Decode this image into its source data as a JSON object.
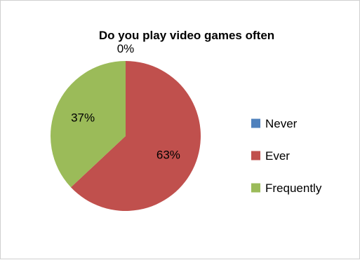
{
  "chart_data": {
    "type": "pie",
    "title": "Do you play video games often",
    "categories": [
      "Never",
      "Ever",
      "Frequently"
    ],
    "values": [
      0,
      63,
      37
    ],
    "data_labels": [
      "0%",
      "63%",
      "37%"
    ],
    "colors": [
      "#4F81BD",
      "#C0504D",
      "#9BBB59"
    ],
    "legend_position": "right"
  }
}
